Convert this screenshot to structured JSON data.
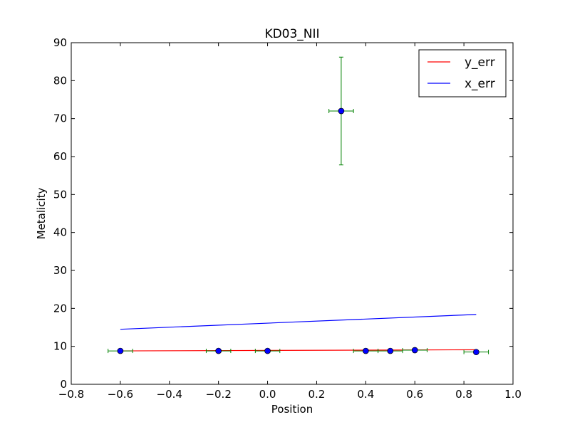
{
  "chart_data": {
    "type": "scatter",
    "title": "KD03_NII",
    "xlabel": "Position",
    "ylabel": "Metalicity",
    "xlim": [
      -0.8,
      1.0
    ],
    "ylim": [
      0,
      90
    ],
    "x_ticks": [
      -0.8,
      -0.6,
      -0.4,
      -0.2,
      0.0,
      0.2,
      0.4,
      0.6,
      0.8,
      1.0
    ],
    "x_tick_labels": [
      "−0.8",
      "−0.6",
      "−0.4",
      "−0.2",
      "0.0",
      "0.2",
      "0.4",
      "0.6",
      "0.8",
      "1.0"
    ],
    "y_ticks": [
      0,
      10,
      20,
      30,
      40,
      50,
      60,
      70,
      80,
      90
    ],
    "y_tick_labels": [
      "0",
      "10",
      "20",
      "30",
      "40",
      "50",
      "60",
      "70",
      "80",
      "90"
    ],
    "grid": false,
    "legend_position": "top-right",
    "points": [
      {
        "x": -0.6,
        "y": 8.8,
        "xerr": 0.05,
        "yerr": 0.3
      },
      {
        "x": -0.2,
        "y": 8.8,
        "xerr": 0.05,
        "yerr": 0.3
      },
      {
        "x": 0.0,
        "y": 8.8,
        "xerr": 0.05,
        "yerr": 0.3
      },
      {
        "x": 0.3,
        "y": 72.0,
        "xerr": 0.05,
        "yerr": 14.2
      },
      {
        "x": 0.4,
        "y": 8.8,
        "xerr": 0.05,
        "yerr": 0.3
      },
      {
        "x": 0.5,
        "y": 8.8,
        "xerr": 0.05,
        "yerr": 0.3
      },
      {
        "x": 0.6,
        "y": 9.0,
        "xerr": 0.05,
        "yerr": 0.3
      },
      {
        "x": 0.85,
        "y": 8.5,
        "xerr": 0.05,
        "yerr": 0.3
      }
    ],
    "series": [
      {
        "name": "y_err",
        "color": "#ff0000",
        "x": [
          -0.6,
          0.85
        ],
        "y": [
          8.8,
          9.1
        ]
      },
      {
        "name": "x_err",
        "color": "#0000ff",
        "x": [
          -0.6,
          0.85
        ],
        "y": [
          14.5,
          18.4
        ]
      }
    ],
    "marker_color": "#0000ff",
    "errorbar_color": "#008000"
  }
}
